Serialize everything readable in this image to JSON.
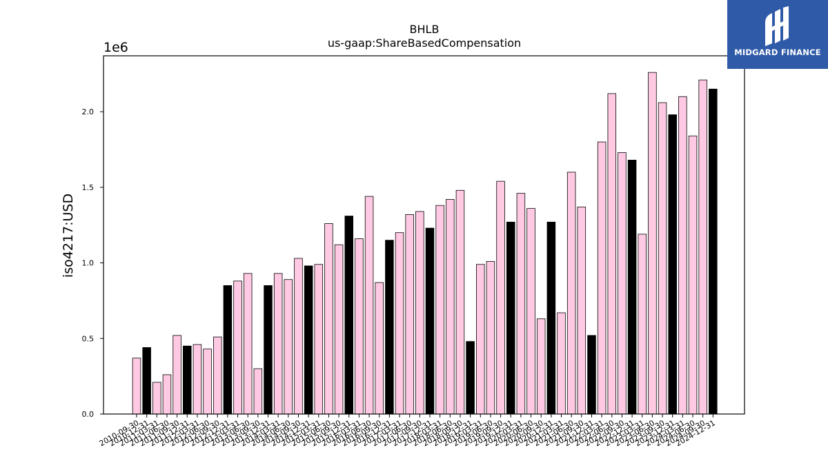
{
  "chart_data": {
    "type": "bar",
    "title": "BHLB",
    "subtitle": "us-gaap:ShareBasedCompensation",
    "ylabel": "iso4217:USD",
    "xlabel": "",
    "y_multiplier_label": "1e6",
    "ylim": [
      0,
      2.37
    ],
    "y_ticks": [
      "0.0",
      "0.5",
      "1.0",
      "1.5",
      "2.0"
    ],
    "y_tick_values": [
      0,
      0.5,
      1.0,
      1.5,
      2.0
    ],
    "grid": false,
    "colors": {
      "quarter": "#ffc9e3",
      "annual": "#000000",
      "edge": "#000000"
    },
    "categories": [
      "2010-09-30",
      "2010-12-31",
      "2011-03-31",
      "2011-06-30",
      "2011-09-30",
      "2011-12-31",
      "2012-03-31",
      "2012-06-30",
      "2012-09-30",
      "2012-12-31",
      "2013-03-31",
      "2013-06-30",
      "2013-09-30",
      "2013-12-31",
      "2014-03-31",
      "2014-06-30",
      "2014-09-30",
      "2014-12-31",
      "2015-03-31",
      "2015-06-30",
      "2015-09-30",
      "2015-12-31",
      "2016-03-31",
      "2016-06-30",
      "2016-09-30",
      "2016-12-31",
      "2017-03-31",
      "2017-06-30",
      "2017-09-30",
      "2017-12-31",
      "2018-03-31",
      "2018-06-30",
      "2018-09-30",
      "2018-12-31",
      "2019-03-31",
      "2019-06-30",
      "2019-09-30",
      "2019-12-31",
      "2020-03-31",
      "2020-06-30",
      "2020-09-30",
      "2020-12-31",
      "2021-03-31",
      "2021-06-30",
      "2021-09-30",
      "2021-12-31",
      "2022-03-31",
      "2022-06-30",
      "2022-09-30",
      "2022-12-31",
      "2023-03-31",
      "2023-06-30",
      "2023-09-30",
      "2023-12-31",
      "2024-03-31",
      "2024-06-30",
      "2024-09-30",
      "2024-12-31"
    ],
    "values": [
      0.37,
      0.44,
      0.21,
      0.26,
      0.52,
      0.45,
      0.46,
      0.43,
      0.51,
      0.85,
      0.88,
      0.93,
      0.3,
      0.85,
      0.93,
      0.89,
      1.03,
      0.98,
      0.99,
      1.26,
      1.12,
      1.31,
      1.16,
      1.44,
      0.87,
      1.15,
      1.2,
      1.32,
      1.34,
      1.23,
      1.38,
      1.42,
      1.48,
      0.48,
      0.99,
      1.01,
      1.54,
      1.27,
      1.46,
      1.36,
      0.63,
      1.27,
      0.67,
      1.6,
      1.37,
      0.52,
      1.8,
      2.12,
      1.73,
      1.68,
      1.19,
      2.26,
      2.06,
      1.98,
      2.1,
      1.84,
      2.21,
      2.15
    ],
    "annual": [
      false,
      true,
      false,
      false,
      false,
      true,
      false,
      false,
      false,
      true,
      false,
      false,
      false,
      true,
      false,
      false,
      false,
      true,
      false,
      false,
      false,
      true,
      false,
      false,
      false,
      true,
      false,
      false,
      false,
      true,
      false,
      false,
      false,
      true,
      false,
      false,
      false,
      true,
      false,
      false,
      false,
      true,
      false,
      false,
      false,
      true,
      false,
      false,
      false,
      true,
      false,
      false,
      false,
      true,
      false,
      false,
      false,
      true
    ]
  },
  "logo": {
    "text": "MIDGARD FINANCE"
  }
}
